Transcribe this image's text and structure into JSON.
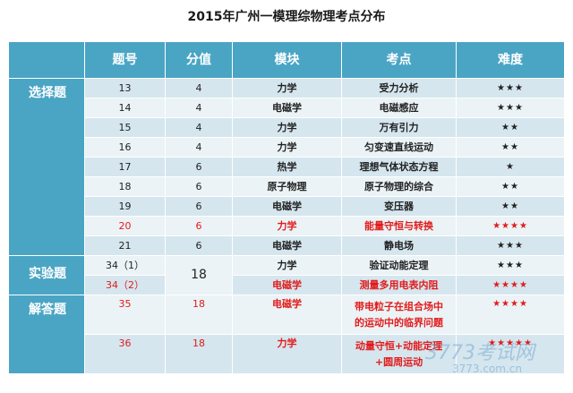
{
  "title": "2015年广州一模理综物理考点分布",
  "headers": [
    "题号",
    "分值",
    "模块",
    "考点",
    "难度"
  ],
  "categories": {
    "choice": "选择题",
    "experiment": "实验题",
    "answer": "解答题"
  },
  "rows": [
    {
      "num": "13",
      "score": "4",
      "module": "力学",
      "point": "受力分析",
      "diff": "★★★"
    },
    {
      "num": "14",
      "score": "4",
      "module": "电磁学",
      "point": "电磁感应",
      "diff": "★★★"
    },
    {
      "num": "15",
      "score": "4",
      "module": "力学",
      "point": "万有引力",
      "diff": "★★"
    },
    {
      "num": "16",
      "score": "4",
      "module": "力学",
      "point": "匀变速直线运动",
      "diff": "★★"
    },
    {
      "num": "17",
      "score": "6",
      "module": "热学",
      "point": "理想气体状态方程",
      "diff": "★"
    },
    {
      "num": "18",
      "score": "6",
      "module": "原子物理",
      "point": "原子物理的综合",
      "diff": "★★"
    },
    {
      "num": "19",
      "score": "6",
      "module": "电磁学",
      "point": "变压器",
      "diff": "★★"
    },
    {
      "num": "20",
      "score": "6",
      "module": "力学",
      "point": "能量守恒与转换",
      "diff": "★★★★"
    },
    {
      "num": "21",
      "score": "6",
      "module": "电磁学",
      "point": "静电场",
      "diff": "★★★"
    }
  ],
  "experiment": {
    "score": "18",
    "rows": [
      {
        "num": "34（1）",
        "module": "力学",
        "point": "验证动能定理",
        "diff": "★★★"
      },
      {
        "num": "34（2）",
        "module": "电磁学",
        "point": "测量多用电表内阻",
        "diff": "★★★★"
      }
    ]
  },
  "answer": {
    "rows": [
      {
        "num": "35",
        "score": "18",
        "module": "电磁学",
        "point_line1": "带电粒子在组合场中",
        "point_line2": "的运动中的临界问题",
        "diff": "★★★★"
      },
      {
        "num": "36",
        "score": "18",
        "module": "力学",
        "point_line1": "动量守恒+动能定理",
        "point_line2": "+圆周运动",
        "diff": "★★★★★"
      }
    ]
  },
  "watermark": {
    "line1": "3773考试网",
    "line2": "3773.com.cn"
  },
  "colors": {
    "header_bg": "#4aa5c4",
    "row_dark": "#d5e6ee",
    "row_light": "#ebf3f6",
    "highlight_text": "#e21b1b"
  }
}
